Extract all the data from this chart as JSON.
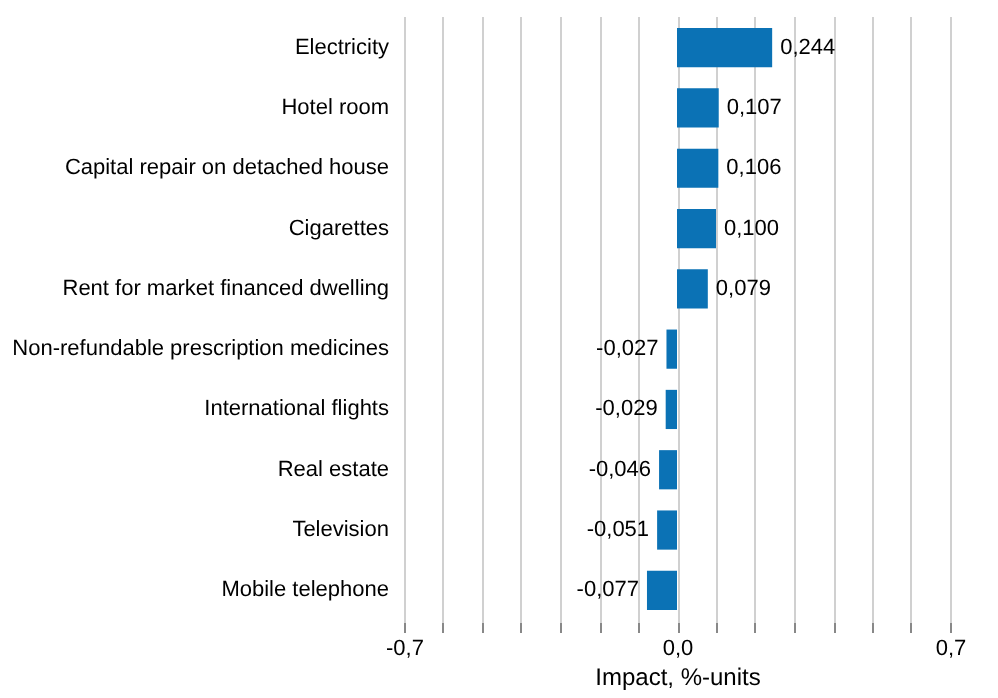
{
  "chart_data": {
    "type": "bar",
    "orientation": "horizontal",
    "xlabel": "Impact, %-units",
    "categories": [
      "Electricity",
      "Hotel room",
      "Capital repair on detached house",
      "Cigarettes",
      "Rent for market financed dwelling",
      "Non-refundable prescription medicines",
      "International flights",
      "Real estate",
      "Television",
      "Mobile telephone"
    ],
    "values": [
      0.244,
      0.107,
      0.106,
      0.1,
      0.079,
      -0.027,
      -0.029,
      -0.046,
      -0.051,
      -0.077
    ],
    "value_labels": [
      "0,244",
      "0,107",
      "0,106",
      "0,100",
      "0,079",
      "-0,027",
      "-0,029",
      "-0,046",
      "-0,051",
      "-0,077"
    ],
    "color": "#0b72b5",
    "xlim": [
      -0.7,
      0.7
    ],
    "xticks": [
      {
        "value": -0.7,
        "label": "-0,7"
      },
      {
        "value": -0.6,
        "label": null
      },
      {
        "value": -0.5,
        "label": null
      },
      {
        "value": -0.4,
        "label": null
      },
      {
        "value": -0.3,
        "label": null
      },
      {
        "value": -0.2,
        "label": null
      },
      {
        "value": -0.1,
        "label": null
      },
      {
        "value": 0,
        "label": "0,0"
      },
      {
        "value": 0.1,
        "label": null
      },
      {
        "value": 0.2,
        "label": null
      },
      {
        "value": 0.3,
        "label": null
      },
      {
        "value": 0.4,
        "label": null
      },
      {
        "value": 0.5,
        "label": null
      },
      {
        "value": 0.6,
        "label": null
      },
      {
        "value": 0.7,
        "label": "0,7"
      }
    ],
    "grid": "x"
  }
}
